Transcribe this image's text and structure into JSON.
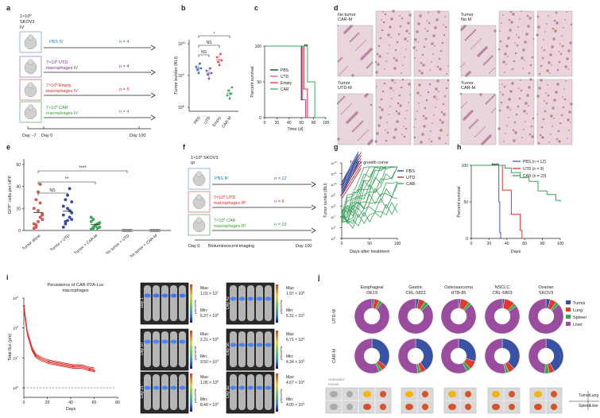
{
  "panel_letters": {
    "a": "a",
    "b": "b",
    "c": "c",
    "d": "d",
    "e": "e",
    "f": "f",
    "g": "g",
    "h": "h",
    "i": "i",
    "j": "j"
  },
  "panel_a": {
    "header_line1": "1×10",
    "header_sup": "6",
    "header_line2": "SKOV3",
    "header_line3": "IV",
    "rows": [
      {
        "label": "PBS IV",
        "n": "n = 4",
        "color": "#1f77b4"
      },
      {
        "label": "7×10",
        "sup": "6",
        "label2": " UTD",
        "label3": "macrophages IV",
        "n": "n = 4",
        "color": "#7a2a8a"
      },
      {
        "label": "7×10",
        "sup": "6",
        "label2": " Empty",
        "label3": "macrophages IV",
        "n": "n = 5",
        "color": "#d62728"
      },
      {
        "label": "7×10",
        "sup": "6",
        "label2": " CAR",
        "label3": "macrophages IV",
        "n": "n = 4",
        "color": "#2ca02c"
      }
    ],
    "timeline": [
      "Day −7",
      "Day 0",
      "Day 100"
    ]
  },
  "panel_b": {
    "ylabel": "Tumor burden (BLI)",
    "yticks": [
      "10",
      "10",
      "10"
    ],
    "ytick_sups": [
      "8",
      "9",
      "10"
    ],
    "categories": [
      "PBS",
      "UTD",
      "Empty",
      "CAR-M"
    ],
    "sig": [
      "NS",
      "NS",
      "*"
    ]
  },
  "panel_c": {
    "ylabel": "Percent survival",
    "xlabel": "Time (d)",
    "yticks": [
      "0",
      "50",
      "100"
    ],
    "xticks": [
      "0",
      "20",
      "40",
      "60",
      "80",
      "100"
    ],
    "legend": [
      "PBS",
      "UTD",
      "Empty",
      "CAR"
    ],
    "sig": "**"
  },
  "panel_d": {
    "labels": [
      [
        "No tumor",
        "CAR-M"
      ],
      [
        "Tumor",
        "No M"
      ],
      [
        "Tumor",
        "UTD-M"
      ],
      [
        "Tumor",
        "CAR-M"
      ]
    ]
  },
  "panel_e": {
    "ylabel": "GFP",
    "ylabel_sup": "+",
    "ylabel2": " cells per HPF",
    "yticks": [
      "0",
      "20",
      "40",
      "60"
    ],
    "categories": [
      "Tumor alone",
      "Tumor + UTD",
      "Tumor + CAR-M",
      "No tumor + UTD",
      "No tumor + CAR-M"
    ],
    "sig": [
      "NS",
      "**",
      "****"
    ]
  },
  "panel_f": {
    "header": "1×10",
    "header_sup": "6",
    "header2": " SKOV3",
    "header3": "IP",
    "rows": [
      {
        "label": "PBS IP",
        "n": "n = 12",
        "color": "#1f77b4"
      },
      {
        "label": "7×10",
        "sup": "6",
        "label2": " UTD",
        "label3": "macrophages IP",
        "n": "n = 9",
        "color": "#d62728"
      },
      {
        "label": "7×10",
        "sup": "6",
        "label2": " CAR",
        "label3": "macrophages IP",
        "n": "n = 23",
        "color": "#2ca02c"
      }
    ],
    "timeline": [
      "Day 0",
      "Bioluminescent imaging",
      "Day 100"
    ]
  },
  "panel_g": {
    "title": "Tumor growth curve",
    "ylabel": "Tumor burden (BLI)",
    "xlabel": "Days after treatment",
    "xticks": [
      "0",
      "50",
      "100"
    ],
    "legend": [
      "PBS",
      "UTD",
      "CAR"
    ]
  },
  "panel_h": {
    "ylabel": "Percent survival",
    "xlabel": "Days",
    "yticks": [
      "0",
      "50",
      "100"
    ],
    "xticks": [
      "0",
      "20",
      "40",
      "60",
      "80",
      "100"
    ],
    "legend": [
      "PBS (n = 12)",
      "UTD (n = 9)",
      "CAR (n = 23)"
    ],
    "sig": "****"
  },
  "panel_i": {
    "title": "Persistence of CAR-P2A-Luc",
    "title2": "macrophages",
    "ylabel": "Total flux (p/s)",
    "xlabel": "Days",
    "xticks": [
      "0",
      "20",
      "40",
      "60",
      "80"
    ],
    "images": [
      {
        "day": "Day 1",
        "max": "1.01 × 10",
        "max_sup": "7",
        "min": "5.27 × 10",
        "min_sup": "5"
      },
      {
        "day": "Day 10",
        "max": "2.21 × 10",
        "max_sup": "5",
        "min": "9.50 × 10",
        "min_sup": "3"
      },
      {
        "day": "Day 21",
        "max": "1.06 × 10",
        "max_sup": "5",
        "min": "8.49 × 10",
        "min_sup": "3"
      },
      {
        "day": "Day 42",
        "max": "1.97 × 10",
        "max_sup": "5",
        "min": "5.31 × 10",
        "min_sup": "3"
      },
      {
        "day": "Day 56",
        "max": "6.71 × 10",
        "max_sup": "4",
        "min": "4.34 × 10",
        "min_sup": "3"
      },
      {
        "day": "Day 92",
        "max": "4.67 × 10",
        "max_sup": "4",
        "min": "4.00 × 10",
        "min_sup": "3"
      }
    ],
    "scale_unit": "p/s/cm²/sr",
    "max_label": "Max:",
    "min_label": "Min:"
  },
  "panel_j": {
    "columns": [
      [
        "Esophageal",
        "OE19"
      ],
      [
        "Gastric",
        "CRL-5822"
      ],
      [
        "Osteosarcoma",
        "HTB-85"
      ],
      [
        "NSCLC",
        "CRL-5803"
      ],
      [
        "Ovarian",
        "SKOV3"
      ]
    ],
    "rows": [
      "UTD-M",
      "CAR-M"
    ],
    "legend": [
      {
        "label": "Tumor",
        "color": "#3953a4"
      },
      {
        "label": "Lung",
        "color": "#e23b2e"
      },
      {
        "label": "Spleen",
        "color": "#2fae4a"
      },
      {
        "label": "Liver",
        "color": "#9a4c9e"
      }
    ],
    "untreated": [
      "Untreated",
      "mouse"
    ],
    "organ_key": [
      "Tumor",
      "Lung",
      "Spleen",
      "Liver"
    ]
  },
  "chart_data": [
    {
      "panel": "c",
      "type": "line",
      "series": [
        {
          "name": "PBS",
          "x": [
            0,
            60,
            60,
            67,
            67
          ],
          "y": [
            100,
            100,
            25,
            25,
            0
          ]
        },
        {
          "name": "UTD",
          "x": [
            0,
            62,
            62,
            67,
            67
          ],
          "y": [
            100,
            100,
            25,
            25,
            0
          ]
        },
        {
          "name": "Empty",
          "x": [
            0,
            64,
            64,
            70,
            70
          ],
          "y": [
            100,
            100,
            40,
            40,
            0
          ]
        },
        {
          "name": "CAR",
          "x": [
            0,
            70,
            70,
            82,
            82,
            95
          ],
          "y": [
            100,
            100,
            50,
            50,
            0,
            0
          ]
        }
      ],
      "ylim": [
        0,
        100
      ],
      "xlim": [
        0,
        100
      ]
    },
    {
      "panel": "h",
      "type": "line",
      "series": [
        {
          "name": "PBS (n = 12)",
          "x": [
            0,
            30,
            31,
            32,
            33
          ],
          "y": [
            100,
            100,
            50,
            8,
            0
          ]
        },
        {
          "name": "UTD (n = 9)",
          "x": [
            0,
            33,
            35,
            45,
            55,
            57
          ],
          "y": [
            100,
            100,
            66,
            33,
            11,
            0
          ]
        },
        {
          "name": "CAR (n = 23)",
          "x": [
            0,
            38,
            45,
            55,
            65,
            75,
            85,
            95,
            100
          ],
          "y": [
            100,
            96,
            90,
            83,
            78,
            65,
            60,
            52,
            50
          ]
        }
      ],
      "ylim": [
        0,
        100
      ],
      "xlim": [
        0,
        100
      ]
    }
  ]
}
